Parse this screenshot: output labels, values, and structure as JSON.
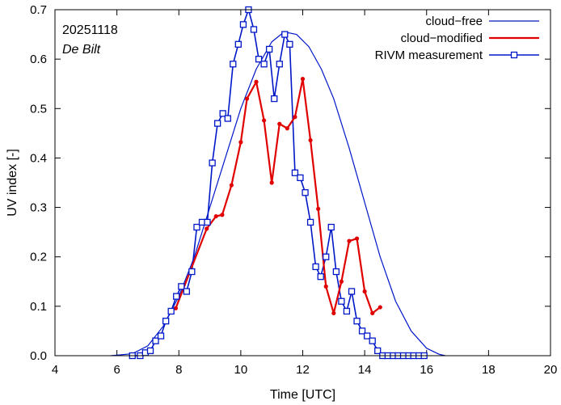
{
  "chart_data": {
    "type": "line",
    "title": "",
    "annotations": {
      "date": "20251118",
      "station": "De Bilt"
    },
    "xlabel": "Time  [UTC]",
    "ylabel": "UV index  [-]",
    "xlim": [
      4,
      20
    ],
    "ylim": [
      0,
      0.7
    ],
    "xticks": [
      4,
      6,
      8,
      10,
      12,
      14,
      16,
      18,
      20
    ],
    "yticks": [
      0.0,
      0.1,
      0.2,
      0.3,
      0.4,
      0.5,
      0.6,
      0.7
    ],
    "legend": {
      "position": "top-right",
      "entries": [
        "cloud−free",
        "cloud−modified",
        "RIVM measurement"
      ]
    },
    "colors": {
      "cloud_free": "#0018c8",
      "cloud_modified": "#e00000",
      "rivm": "#0018c8",
      "axes": "#000000"
    },
    "series": [
      {
        "name": "cloud−free",
        "style": "thin-line",
        "x": [
          5.8,
          6.0,
          6.5,
          7.0,
          7.5,
          8.0,
          8.5,
          9.0,
          9.5,
          10.0,
          10.5,
          11.0,
          11.4,
          11.8,
          12.2,
          12.6,
          13.0,
          13.5,
          14.0,
          14.5,
          15.0,
          15.5,
          16.0,
          16.4,
          16.6
        ],
        "values": [
          0.0,
          0.001,
          0.004,
          0.02,
          0.06,
          0.12,
          0.2,
          0.3,
          0.4,
          0.5,
          0.58,
          0.635,
          0.655,
          0.65,
          0.625,
          0.58,
          0.52,
          0.42,
          0.31,
          0.2,
          0.11,
          0.05,
          0.015,
          0.003,
          0.0
        ]
      },
      {
        "name": "cloud−modified",
        "style": "thick-line-dots",
        "x": [
          7.9,
          8.9,
          9.2,
          9.4,
          9.7,
          10.0,
          10.2,
          10.5,
          10.75,
          11.0,
          11.25,
          11.5,
          11.75,
          12.0,
          12.25,
          12.5,
          12.75,
          13.0,
          13.25,
          13.5,
          13.75,
          14.0,
          14.25,
          14.5
        ],
        "values": [
          0.096,
          0.257,
          0.282,
          0.285,
          0.345,
          0.432,
          0.52,
          0.554,
          0.476,
          0.35,
          0.469,
          0.46,
          0.483,
          0.56,
          0.436,
          0.297,
          0.14,
          0.086,
          0.15,
          0.232,
          0.237,
          0.13,
          0.086,
          0.098
        ]
      },
      {
        "name": "RIVM measurement",
        "style": "line-squares",
        "x": [
          6.5,
          6.75,
          6.92,
          7.08,
          7.25,
          7.42,
          7.58,
          7.75,
          7.92,
          8.08,
          8.25,
          8.42,
          8.58,
          8.75,
          8.92,
          9.08,
          9.25,
          9.42,
          9.58,
          9.75,
          9.92,
          10.08,
          10.25,
          10.42,
          10.58,
          10.75,
          10.92,
          11.08,
          11.25,
          11.42,
          11.58,
          11.75,
          11.92,
          12.08,
          12.25,
          12.42,
          12.58,
          12.75,
          12.92,
          13.08,
          13.25,
          13.42,
          13.58,
          13.75,
          13.92,
          14.08,
          14.25,
          14.42,
          14.58,
          14.75,
          14.92,
          15.08,
          15.25,
          15.42,
          15.58,
          15.75,
          15.92
        ],
        "values": [
          0.0,
          0.0,
          0.006,
          0.01,
          0.03,
          0.04,
          0.07,
          0.09,
          0.12,
          0.14,
          0.13,
          0.17,
          0.26,
          0.27,
          0.27,
          0.39,
          0.47,
          0.49,
          0.48,
          0.59,
          0.63,
          0.67,
          0.7,
          0.66,
          0.6,
          0.59,
          0.62,
          0.52,
          0.59,
          0.65,
          0.63,
          0.37,
          0.36,
          0.33,
          0.27,
          0.18,
          0.16,
          0.2,
          0.26,
          0.17,
          0.11,
          0.09,
          0.13,
          0.07,
          0.05,
          0.04,
          0.03,
          0.01,
          0.0,
          0.0,
          0.0,
          0.0,
          0.0,
          0.0,
          0.0,
          0.0,
          0.0
        ]
      }
    ]
  }
}
